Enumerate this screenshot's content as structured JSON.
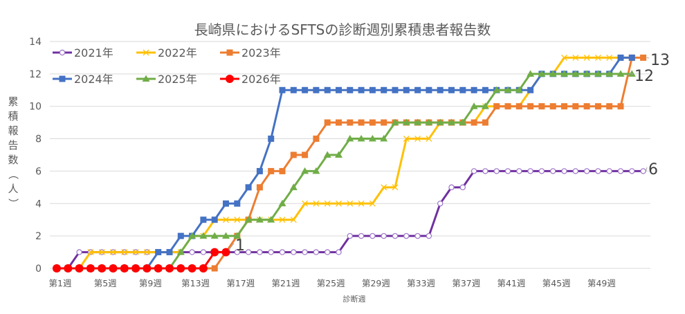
{
  "chart_data": {
    "type": "line",
    "title": "長崎県におけるSFTSの診断週別累積患者報告数",
    "xlabel": "診断週",
    "ylabel": "累積報告数（人）",
    "ylim": [
      0,
      14
    ],
    "yticks": [
      0,
      2,
      4,
      6,
      8,
      10,
      12,
      14
    ],
    "grid": true,
    "legend_position": "top-left, inside plot",
    "x": [
      1,
      2,
      3,
      4,
      5,
      6,
      7,
      8,
      9,
      10,
      11,
      12,
      13,
      14,
      15,
      16,
      17,
      18,
      19,
      20,
      21,
      22,
      23,
      24,
      25,
      26,
      27,
      28,
      29,
      30,
      31,
      32,
      33,
      34,
      35,
      36,
      37,
      38,
      39,
      40,
      41,
      42,
      43,
      44,
      45,
      46,
      47,
      48,
      49,
      50,
      51,
      52,
      53
    ],
    "xtick_labels": [
      "第1週",
      "第5週",
      "第9週",
      "第13週",
      "第17週",
      "第21週",
      "第25週",
      "第29週",
      "第33週",
      "第37週",
      "第41週",
      "第45週",
      "第49週"
    ],
    "xtick_weeks": [
      1,
      5,
      9,
      13,
      17,
      21,
      25,
      29,
      33,
      37,
      41,
      45,
      49
    ],
    "series": [
      {
        "name": "2021年",
        "color": "#7030a0",
        "marker": "open-circle",
        "values": [
          0,
          0,
          1,
          1,
          1,
          1,
          1,
          1,
          1,
          1,
          1,
          1,
          1,
          1,
          1,
          1,
          1,
          1,
          1,
          1,
          1,
          1,
          1,
          1,
          1,
          1,
          2,
          2,
          2,
          2,
          2,
          2,
          2,
          2,
          4,
          5,
          5,
          6,
          6,
          6,
          6,
          6,
          6,
          6,
          6,
          6,
          6,
          6,
          6,
          6,
          6,
          6,
          6
        ],
        "end_label": "6"
      },
      {
        "name": "2022年",
        "color": "#ffc000",
        "marker": "x",
        "values": [
          0,
          0,
          0,
          1,
          1,
          1,
          1,
          1,
          1,
          1,
          1,
          1,
          2,
          2,
          3,
          3,
          3,
          3,
          3,
          3,
          3,
          3,
          4,
          4,
          4,
          4,
          4,
          4,
          4,
          5,
          5,
          8,
          8,
          8,
          9,
          9,
          9,
          9,
          10,
          10,
          10,
          10,
          11,
          12,
          12,
          13,
          13,
          13,
          13,
          13,
          13,
          13
        ],
        "end_label": ""
      },
      {
        "name": "2023年",
        "color": "#ed7d31",
        "marker": "square",
        "values": [
          0,
          0,
          0,
          0,
          0,
          0,
          0,
          0,
          0,
          0,
          0,
          0,
          0,
          0,
          0,
          1,
          2,
          3,
          5,
          6,
          6,
          7,
          7,
          8,
          9,
          9,
          9,
          9,
          9,
          9,
          9,
          9,
          9,
          9,
          9,
          9,
          9,
          9,
          9,
          10,
          10,
          10,
          10,
          10,
          10,
          10,
          10,
          10,
          10,
          10,
          10,
          13,
          13
        ],
        "end_label": "13"
      },
      {
        "name": "2024年",
        "color": "#4472c4",
        "marker": "square",
        "values": [
          0,
          0,
          0,
          0,
          0,
          0,
          0,
          0,
          0,
          1,
          1,
          2,
          2,
          3,
          3,
          4,
          4,
          5,
          6,
          8,
          11,
          11,
          11,
          11,
          11,
          11,
          11,
          11,
          11,
          11,
          11,
          11,
          11,
          11,
          11,
          11,
          11,
          11,
          11,
          11,
          11,
          11,
          11,
          12,
          12,
          12,
          12,
          12,
          12,
          12,
          13,
          13
        ],
        "end_label": ""
      },
      {
        "name": "2025年",
        "color": "#70ad47",
        "marker": "triangle",
        "values": [
          0,
          0,
          0,
          0,
          0,
          0,
          0,
          0,
          0,
          0,
          0,
          1,
          2,
          2,
          2,
          2,
          2,
          3,
          3,
          3,
          4,
          5,
          6,
          6,
          7,
          7,
          8,
          8,
          8,
          8,
          9,
          9,
          9,
          9,
          9,
          9,
          9,
          10,
          10,
          11,
          11,
          11,
          12,
          12,
          12,
          12,
          12,
          12,
          12,
          12,
          12,
          12
        ],
        "end_label": "12"
      },
      {
        "name": "2026年",
        "color": "#ff0000",
        "marker": "filled-circle",
        "values": [
          0,
          0,
          0,
          0,
          0,
          0,
          0,
          0,
          0,
          0,
          0,
          0,
          0,
          0,
          1,
          1
        ],
        "end_label": "1"
      }
    ]
  }
}
